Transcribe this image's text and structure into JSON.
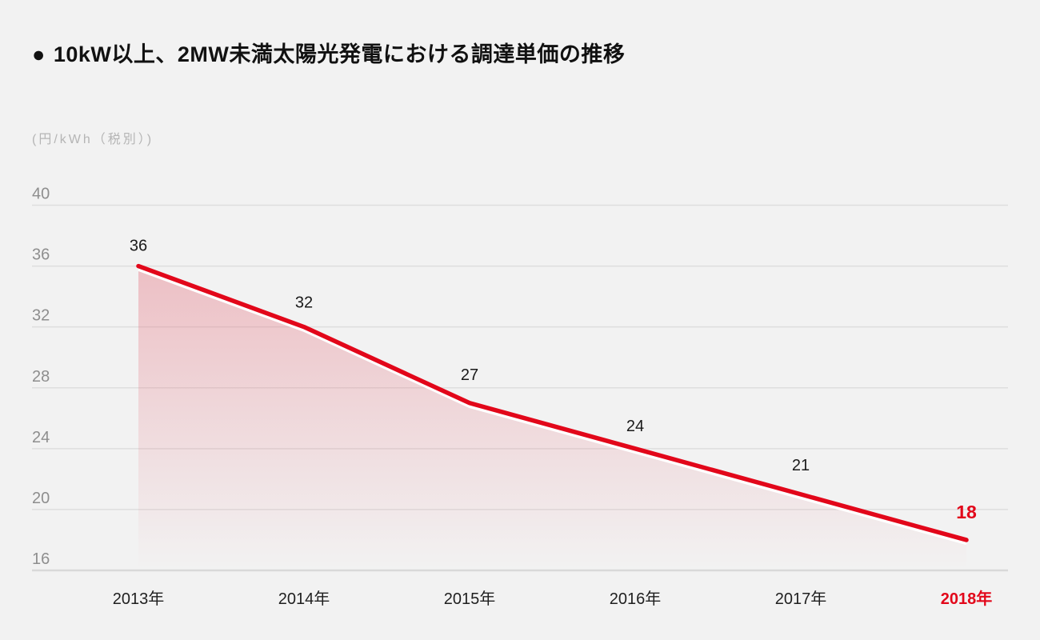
{
  "header": {
    "bullet": "●",
    "title": "10kW以上、2MW未満太陽光発電における調達単価の推移"
  },
  "chart_data": {
    "type": "area",
    "title": "10kW以上、2MW未満太陽光発電における調達単価の推移",
    "ylabel": "(円/kWh（税別）)",
    "xlabel": "",
    "categories": [
      "2013年",
      "2014年",
      "2015年",
      "2016年",
      "2017年",
      "2018年"
    ],
    "values": [
      36,
      32,
      27,
      24,
      21,
      18
    ],
    "yticks": [
      40,
      36,
      32,
      28,
      24,
      20,
      16
    ],
    "ylim": [
      16,
      40
    ],
    "grid": true,
    "legend": "none",
    "highlight_index": 5,
    "colors": {
      "background": "#f2f2f2",
      "line": "#e2071a",
      "line_underlay": "#ffffff",
      "fill_top": "rgba(226,92,108,0.34)",
      "fill_bottom": "rgba(226,92,108,0)",
      "grid": "#dedede",
      "axis_bottom": "#d9d9d9",
      "tick_text": "#8e8e8e",
      "value_text": "#1a1a1a",
      "category_text": "#1f1f1f",
      "highlight": "#e2071a",
      "title_text": "#111111",
      "unit_text": "#b5b5b5"
    }
  }
}
